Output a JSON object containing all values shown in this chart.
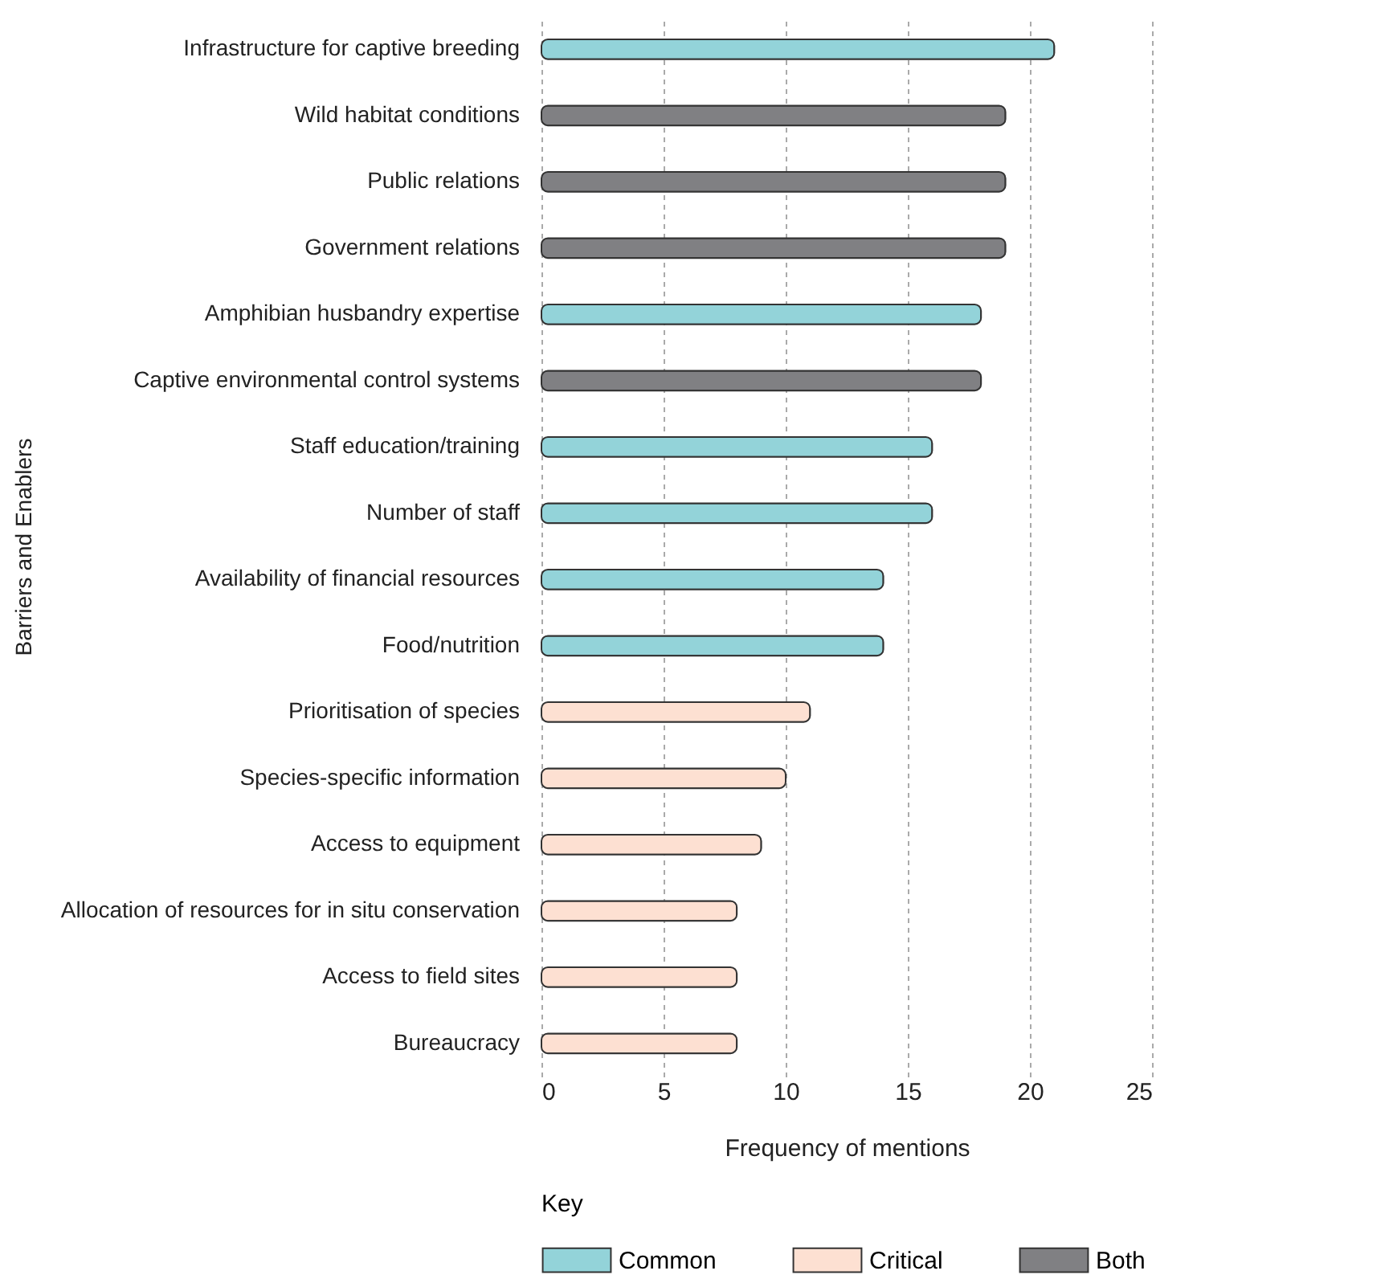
{
  "chart_data": {
    "type": "bar",
    "orientation": "horizontal",
    "xlabel": "Frequency of mentions",
    "ylabel": "Barriers and Enablers",
    "legend_title": "Key",
    "legend": "bottom",
    "grid": "x",
    "categories": [
      "Infrastructure for captive breeding",
      "Wild habitat conditions",
      "Public relations",
      "Government relations",
      "Amphibian husbandry expertise",
      "Captive environmental control systems",
      "Staff education/training",
      "Number of staff",
      "Availability of financial resources",
      "Food/nutrition",
      "Prioritisation of species",
      "Species-specific information",
      "Access to equipment",
      "Allocation of resources for in situ conservation",
      "Access to field sites",
      "Bureaucracy"
    ],
    "series": [
      {
        "name": "Common",
        "color": "#93d3d9",
        "values": [
          21,
          null,
          null,
          null,
          18,
          null,
          16,
          16,
          14,
          14,
          null,
          null,
          null,
          null,
          null,
          null
        ]
      },
      {
        "name": "Critical",
        "color": "#fde0d2",
        "values": [
          null,
          null,
          null,
          null,
          null,
          null,
          null,
          null,
          null,
          null,
          11,
          10,
          9,
          8,
          8,
          8
        ]
      },
      {
        "name": "Both",
        "color": "#808083",
        "values": [
          null,
          19,
          19,
          19,
          null,
          18,
          null,
          null,
          null,
          null,
          null,
          null,
          null,
          null,
          null,
          null
        ]
      }
    ],
    "xlim": [
      0,
      25
    ],
    "xticks": [
      0,
      5,
      10,
      15,
      20,
      25
    ]
  }
}
